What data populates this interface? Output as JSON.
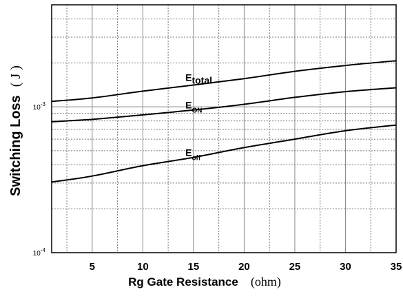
{
  "chart_data": {
    "type": "line",
    "xlabel": "Rg Gate Resistance",
    "xlabel_unit": "(ohm)",
    "ylabel": "Switching Loss",
    "ylabel_unit": "( J )",
    "xlim": [
      1,
      35
    ],
    "ylim": [
      0.0001,
      0.005
    ],
    "yscale": "log",
    "grid": true,
    "x_ticks": [
      5,
      10,
      15,
      20,
      25,
      30,
      35
    ],
    "x_tick_labels": [
      "5",
      "10",
      "15",
      "20",
      "25",
      "30",
      "35"
    ],
    "y_tick_labels": [
      {
        "value": 0.001,
        "mantissa": "10",
        "exponent": "-3"
      },
      {
        "value": 0.0001,
        "mantissa": "10",
        "exponent": "-4"
      }
    ],
    "series": [
      {
        "name": "E total",
        "label_main": "E",
        "label_sub": "total",
        "color": "#000000",
        "x": [
          1,
          5,
          10,
          15,
          20,
          25,
          30,
          35
        ],
        "y": [
          0.00109,
          0.00115,
          0.00128,
          0.00141,
          0.00156,
          0.00175,
          0.00192,
          0.00207
        ]
      },
      {
        "name": "E ON",
        "label_main": "E",
        "label_sub": "ON",
        "color": "#000000",
        "x": [
          1,
          5,
          10,
          15,
          20,
          25,
          30,
          35
        ],
        "y": [
          0.00079,
          0.00082,
          0.00088,
          0.00095,
          0.00104,
          0.00116,
          0.00127,
          0.00135
        ]
      },
      {
        "name": "E off",
        "label_main": "E",
        "label_sub": "off",
        "color": "#000000",
        "x": [
          1,
          5,
          10,
          15,
          20,
          25,
          30,
          35
        ],
        "y": [
          0.000305,
          0.000335,
          0.000395,
          0.00045,
          0.000525,
          0.0006,
          0.000685,
          0.00075
        ]
      }
    ]
  }
}
